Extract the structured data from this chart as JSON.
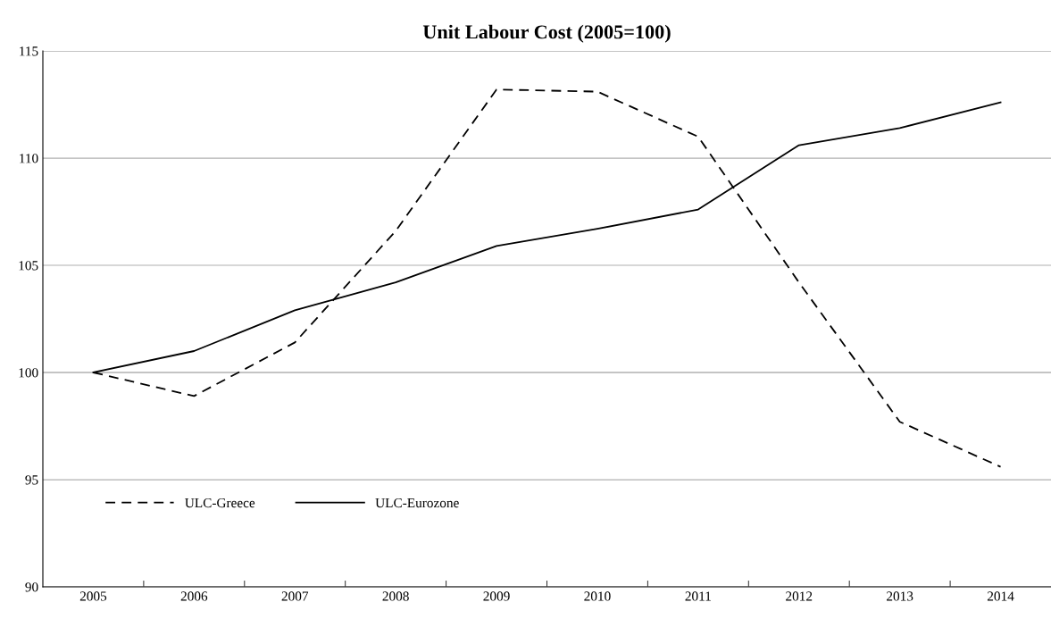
{
  "chart_data": {
    "type": "line",
    "title": "Unit Labour Cost (2005=100)",
    "categories": [
      "2005",
      "2006",
      "2007",
      "2008",
      "2009",
      "2010",
      "2011",
      "2012",
      "2013",
      "2014"
    ],
    "series": [
      {
        "name": "ULC-Greece",
        "color": "#000000",
        "line_style": "dashed",
        "values": [
          100,
          98.9,
          101.4,
          106.6,
          113.2,
          113.1,
          111.0,
          104.2,
          97.7,
          95.6
        ]
      },
      {
        "name": "ULC-Eurozone",
        "color": "#000000",
        "line_style": "solid",
        "values": [
          100,
          101.0,
          102.9,
          104.2,
          105.9,
          106.7,
          107.6,
          110.6,
          111.4,
          112.6
        ]
      }
    ],
    "ylim": [
      90,
      115
    ],
    "yticks": [
      90,
      95,
      100,
      105,
      110,
      115
    ],
    "grid": "y",
    "legend": "bottom left",
    "marker": "none"
  }
}
